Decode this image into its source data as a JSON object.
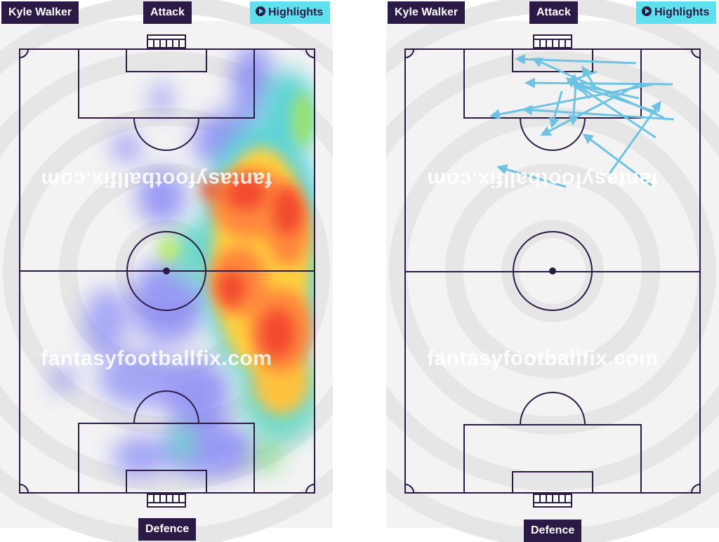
{
  "player_name": "Kyle Walker",
  "labels": {
    "attack": "Attack",
    "defence": "Defence",
    "highlights": "Highlights"
  },
  "watermark": "fantasyfootballfix.com",
  "colors": {
    "pitch_lines": "#2b1a45",
    "tag_bg": "#2b1a45",
    "highlights_bg": "#5fe0ef",
    "arrow": "#6ec3e3"
  },
  "icons": {
    "highlights": "play-circle-icon"
  },
  "views": [
    {
      "id": "heatmap",
      "type": "touch-heatmap"
    },
    {
      "id": "passes",
      "type": "pass-map",
      "arrow_count": 17
    }
  ]
}
